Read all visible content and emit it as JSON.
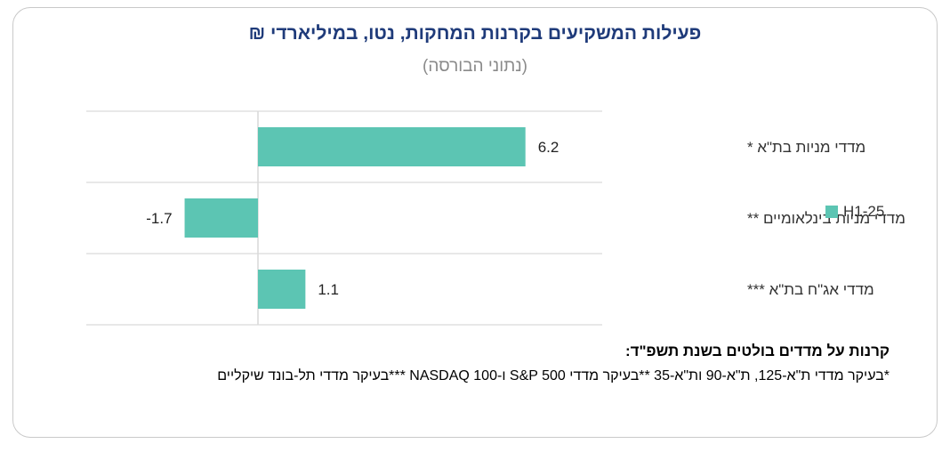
{
  "colors": {
    "bar": "#5cc5b3",
    "title": "#1f3b7a",
    "grid": "#d9d9d9"
  },
  "chart_data": {
    "type": "bar",
    "orientation": "horizontal",
    "title": "פעילות המשקיעים בקרנות המחקות, נטו, במיליארדי ₪",
    "subtitle": "(נתוני הבורסה)",
    "categories": [
      "מדדי מניות בת\"א *",
      "מדדי מניות בינלאומיים **",
      "מדדי אג\"ח בת\"א ***"
    ],
    "series": [
      {
        "name": "H1-25",
        "values": [
          6.2,
          -1.7,
          1.1
        ]
      }
    ],
    "data_labels": [
      "6.2",
      "-1.7",
      "1.1"
    ],
    "xlim": [
      -2,
      8
    ],
    "grid": true,
    "legend_position": "right"
  },
  "notes": {
    "heading": "קרנות על מדדים בולטים בשנת תשפ\"ד:",
    "body": "*בעיקר מדדי ת\"א-125, ת\"א-90 ות\"א-35 **בעיקר מדדי S&P 500 ו-NASDAQ 100 ***בעיקר מדדי תל-בונד שיקליים"
  }
}
